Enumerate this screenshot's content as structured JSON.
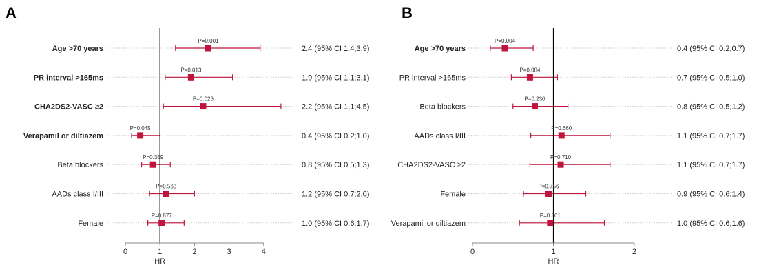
{
  "chart_data": [
    {
      "type": "forest",
      "panel": "A",
      "xlabel": "HR",
      "xlim": [
        0,
        4
      ],
      "x_ticks": [
        "0",
        "1",
        "2",
        "3",
        "4"
      ],
      "reference_line": 1,
      "marker_color": "#c0143c",
      "rows": [
        {
          "label": "Age >70 years",
          "bold": true,
          "hr": 2.4,
          "lo": 1.45,
          "hi": 3.9,
          "p_label": "P=0.001",
          "ci_text": "2.4 (95% CI 1.4;3.9)"
        },
        {
          "label": "PR interval >165ms",
          "bold": true,
          "hr": 1.9,
          "lo": 1.15,
          "hi": 3.1,
          "p_label": "P=0.013",
          "ci_text": "1.9 (95% CI 1.1;3.1)"
        },
        {
          "label": "CHA2DS2-VASC ≥2",
          "bold": true,
          "hr": 2.25,
          "lo": 1.1,
          "hi": 4.5,
          "p_label": "P=0.026",
          "ci_text": "2.2 (95% CI 1.1;4.5)"
        },
        {
          "label": "Verapamil or diltiazem",
          "bold": true,
          "hr": 0.43,
          "lo": 0.18,
          "hi": 1.0,
          "p_label": "P=0.045",
          "ci_text": "0.4 (95% CI 0.2;1.0)"
        },
        {
          "label": "Beta blockers",
          "bold": false,
          "hr": 0.8,
          "lo": 0.47,
          "hi": 1.3,
          "p_label": "P=0.359",
          "ci_text": "0.8 (95% CI 0.5;1.3)"
        },
        {
          "label": "AADs class I/III",
          "bold": false,
          "hr": 1.18,
          "lo": 0.7,
          "hi": 2.0,
          "p_label": "P=0.563",
          "ci_text": "1.2 (95% CI 0.7;2.0)"
        },
        {
          "label": "Female",
          "bold": false,
          "hr": 1.05,
          "lo": 0.65,
          "hi": 1.7,
          "p_label": "P=0.877",
          "ci_text": "1.0 (95% CI 0.6;1.7)"
        }
      ]
    },
    {
      "type": "forest",
      "panel": "B",
      "xlabel": "HR",
      "xlim": [
        0,
        2
      ],
      "x_ticks": [
        "0",
        "1",
        "2"
      ],
      "reference_line": 1,
      "marker_color": "#c0143c",
      "rows": [
        {
          "label": "Age >70 years",
          "bold": true,
          "hr": 0.4,
          "lo": 0.22,
          "hi": 0.75,
          "p_label": "P=0.004",
          "ci_text": "0.4 (95% CI 0.2;0.7)"
        },
        {
          "label": "PR interval >165ms",
          "bold": false,
          "hr": 0.71,
          "lo": 0.48,
          "hi": 1.05,
          "p_label": "P=0.084",
          "ci_text": "0.7 (95% CI 0.5;1.0)"
        },
        {
          "label": "Beta blockers",
          "bold": false,
          "hr": 0.77,
          "lo": 0.5,
          "hi": 1.18,
          "p_label": "P=0.230",
          "ci_text": "0.8 (95% CI 0.5;1.2)"
        },
        {
          "label": "AADs class I/III",
          "bold": false,
          "hr": 1.1,
          "lo": 0.72,
          "hi": 1.7,
          "p_label": "P=0.660",
          "ci_text": "1.1 (95% CI 0.7;1.7)"
        },
        {
          "label": "CHA2DS2-VASC ≥2",
          "bold": false,
          "hr": 1.09,
          "lo": 0.71,
          "hi": 1.7,
          "p_label": "P=0.710",
          "ci_text": "1.1 (95% CI 0.7;1.7)"
        },
        {
          "label": "Female",
          "bold": false,
          "hr": 0.94,
          "lo": 0.63,
          "hi": 1.4,
          "p_label": "P=0.756",
          "ci_text": "0.9 (95% CI 0.6;1.4)"
        },
        {
          "label": "Verapamil or diltiazem",
          "bold": false,
          "hr": 0.96,
          "lo": 0.58,
          "hi": 1.63,
          "p_label": "P=0.861",
          "ci_text": "1.0 (95% CI 0.6;1.6)"
        }
      ]
    }
  ]
}
